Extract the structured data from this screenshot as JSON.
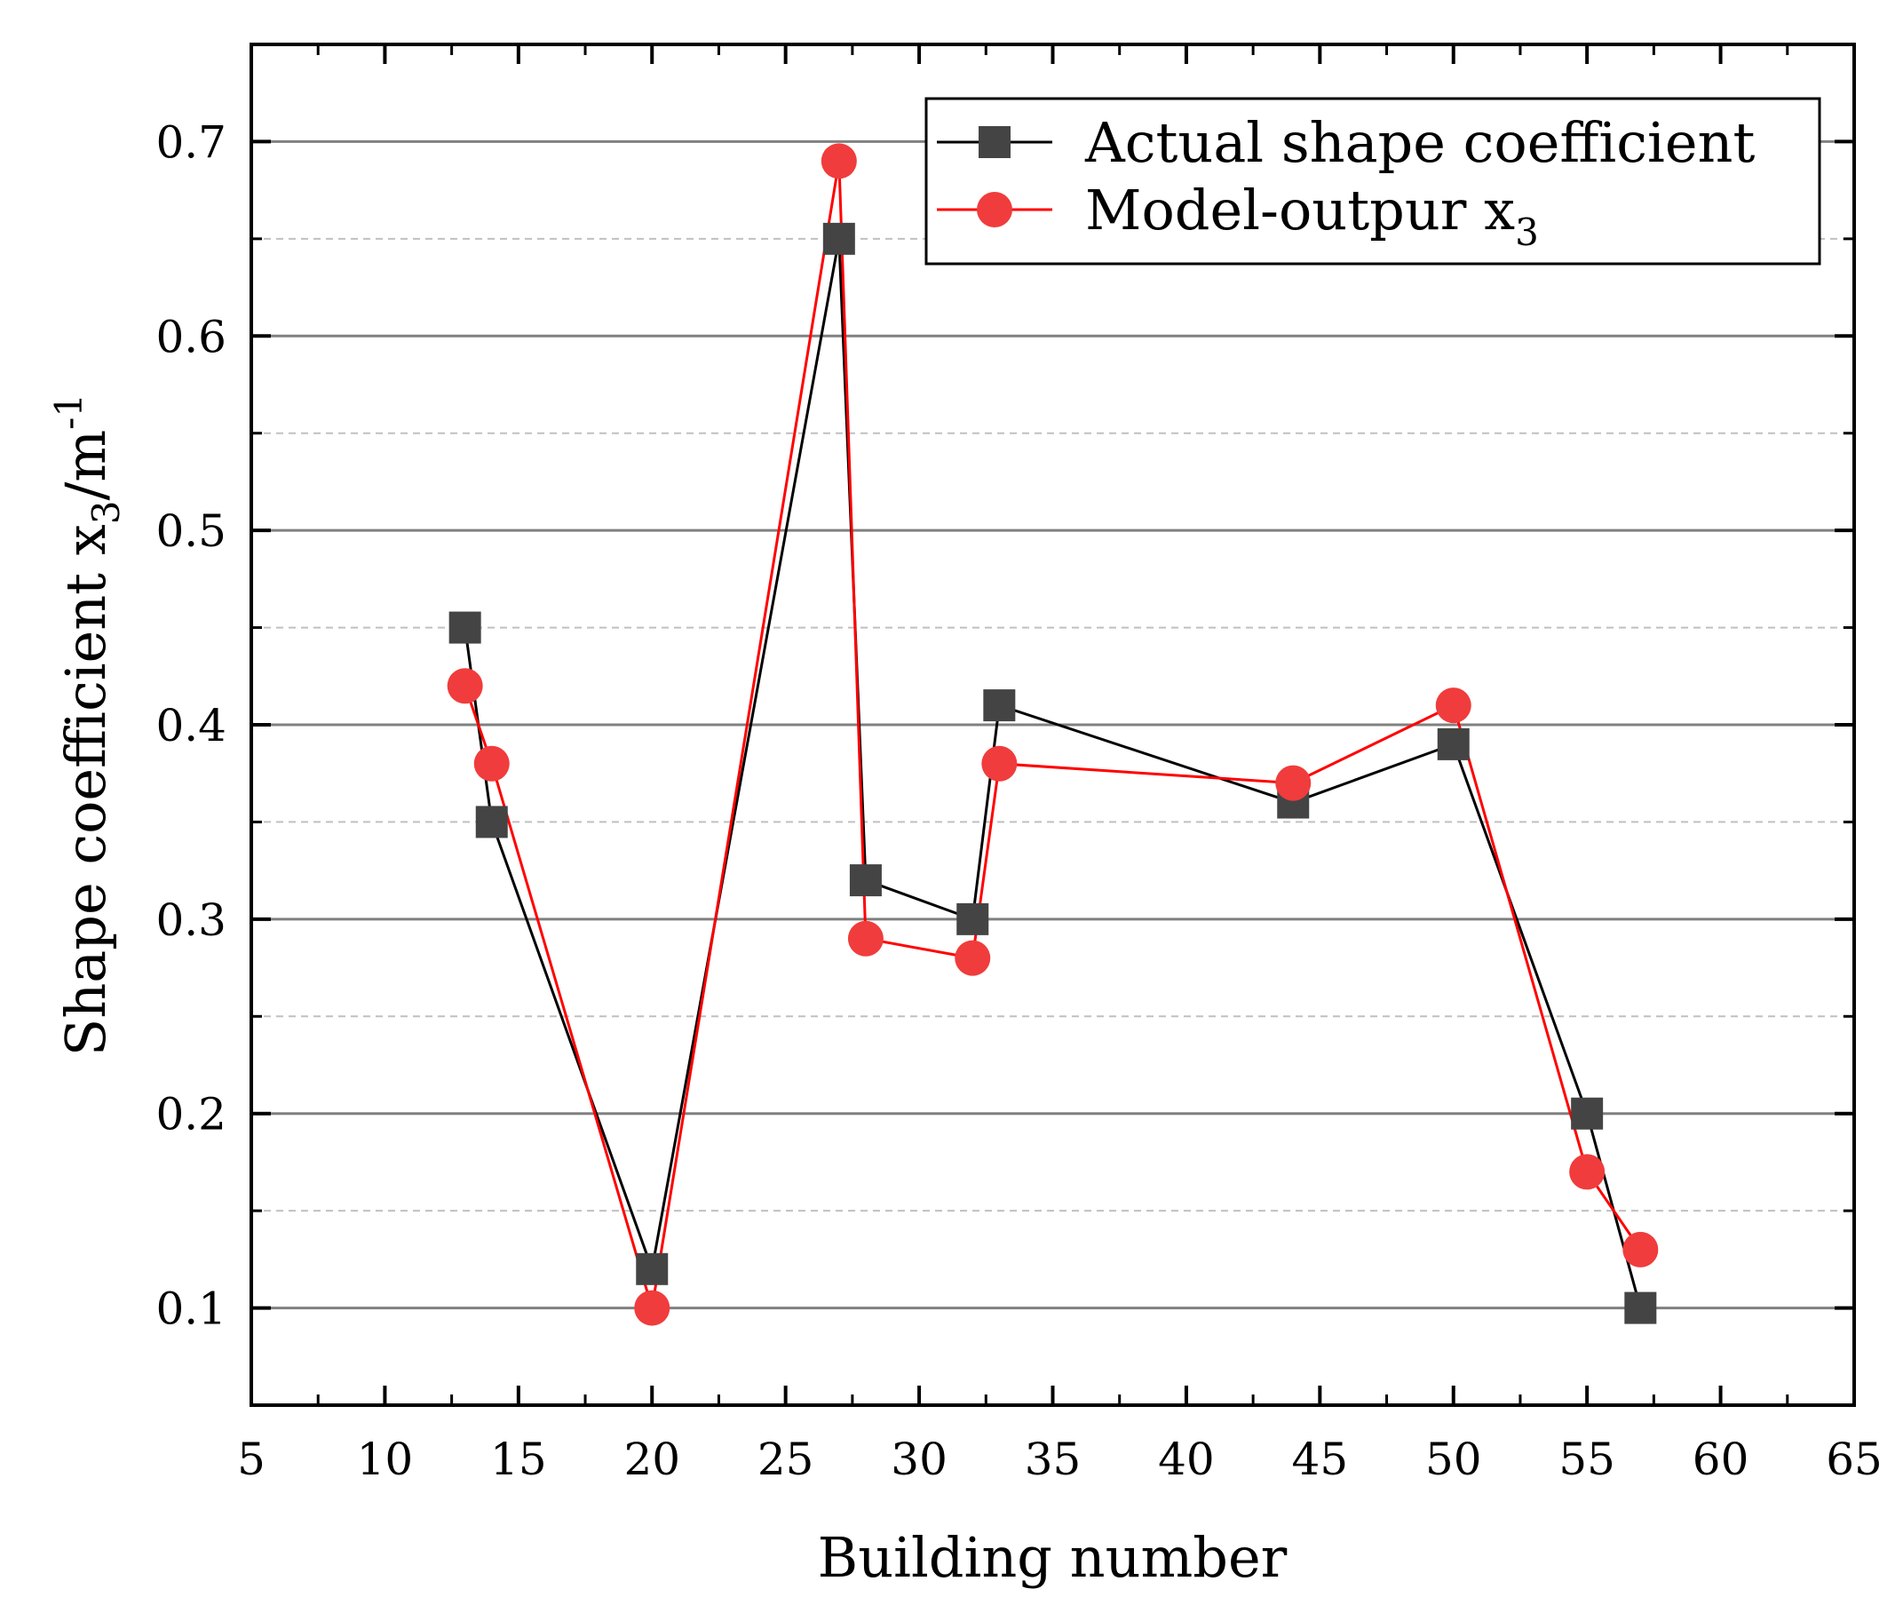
{
  "chart_data": {
    "type": "line",
    "title": "",
    "xlabel": "Building number",
    "ylabel": {
      "main": "Shape coefficient x",
      "sub": "3",
      "mid": "/m",
      "sup": "-1"
    },
    "xlim": [
      5,
      65
    ],
    "ylim": [
      0.05,
      0.75
    ],
    "xticks": [
      5,
      10,
      15,
      20,
      25,
      30,
      35,
      40,
      45,
      50,
      55,
      60,
      65
    ],
    "xtick_labels": [
      "5",
      "10",
      "15",
      "20",
      "25",
      "30",
      "35",
      "40",
      "45",
      "50",
      "55",
      "60",
      "65"
    ],
    "yticks": [
      0.1,
      0.2,
      0.3,
      0.4,
      0.5,
      0.6,
      0.7
    ],
    "ytick_labels": [
      "0.1",
      "0.2",
      "0.3",
      "0.4",
      "0.5",
      "0.6",
      "0.7"
    ],
    "grid": true,
    "legend_position": "top-right",
    "series": [
      {
        "name": "Actual shape coefficient",
        "color": "#000000",
        "marker_color": "#444444",
        "marker": "square",
        "x": [
          13,
          14,
          20,
          27,
          28,
          32,
          33,
          44,
          50,
          55,
          57
        ],
        "y": [
          0.45,
          0.35,
          0.12,
          0.65,
          0.32,
          0.3,
          0.41,
          0.36,
          0.39,
          0.2,
          0.1
        ]
      },
      {
        "name": "Model-outpur x",
        "name_sub": "3",
        "color": "#ff0000",
        "marker_color": "#f03c3c",
        "marker": "circle",
        "x": [
          13,
          14,
          20,
          27,
          28,
          32,
          33,
          44,
          50,
          55,
          57
        ],
        "y": [
          0.42,
          0.38,
          0.1,
          0.69,
          0.29,
          0.28,
          0.38,
          0.37,
          0.41,
          0.17,
          0.13
        ]
      }
    ]
  }
}
